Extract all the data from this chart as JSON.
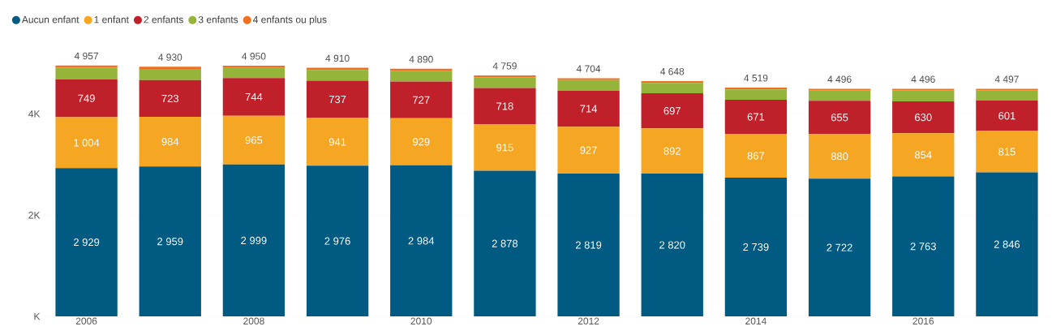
{
  "chart_data": {
    "type": "bar",
    "stacked": true,
    "categories": [
      "2006",
      null,
      "2008",
      null,
      "2010",
      null,
      "2012",
      null,
      "2014",
      null,
      "2016",
      null
    ],
    "series": [
      {
        "name": "Aucun enfant",
        "color": "#005a82",
        "values": [
          2929,
          2959,
          2999,
          2976,
          2984,
          2878,
          2819,
          2820,
          2739,
          2722,
          2763,
          2846
        ],
        "value_labels": [
          "2 929",
          "2 959",
          "2 999",
          "2 976",
          "2 984",
          "2 878",
          "2 819",
          "2 820",
          "2 739",
          "2 722",
          "2 763",
          "2 846"
        ]
      },
      {
        "name": "1 enfant",
        "color": "#f5a623",
        "values": [
          1004,
          984,
          965,
          941,
          929,
          915,
          927,
          892,
          867,
          880,
          854,
          815
        ],
        "value_labels": [
          "1 004",
          "984",
          "965",
          "941",
          "929",
          "915",
          "927",
          "892",
          "867",
          "880",
          "854",
          "815"
        ]
      },
      {
        "name": "2 enfants",
        "color": "#c0202a",
        "values": [
          749,
          723,
          744,
          737,
          727,
          718,
          714,
          697,
          671,
          655,
          630,
          601
        ],
        "value_labels": [
          "749",
          "723",
          "744",
          "737",
          "727",
          "718",
          "714",
          "697",
          "671",
          "655",
          "630",
          "601"
        ]
      },
      {
        "name": "3 enfants",
        "color": "#95b43a",
        "values": [
          230,
          220,
          200,
          215,
          210,
          210,
          206,
          203,
          207,
          205,
          215,
          202
        ]
      },
      {
        "name": "4 enfants ou plus",
        "color": "#f07020",
        "values": [
          45,
          44,
          42,
          41,
          40,
          38,
          38,
          36,
          35,
          34,
          34,
          33
        ]
      }
    ],
    "totals": [
      "4 957",
      "4 930",
      "4 950",
      "4 910",
      "4 890",
      "4 759",
      "4 704",
      "4 648",
      "4 519",
      "4 496",
      "4 496",
      "4 497"
    ],
    "ylim": [
      0,
      5000
    ],
    "yticks": [
      {
        "value": 0,
        "label": "K"
      },
      {
        "value": 2000,
        "label": "2K"
      },
      {
        "value": 4000,
        "label": "4K"
      }
    ],
    "grid": "y",
    "legend": "top left"
  }
}
